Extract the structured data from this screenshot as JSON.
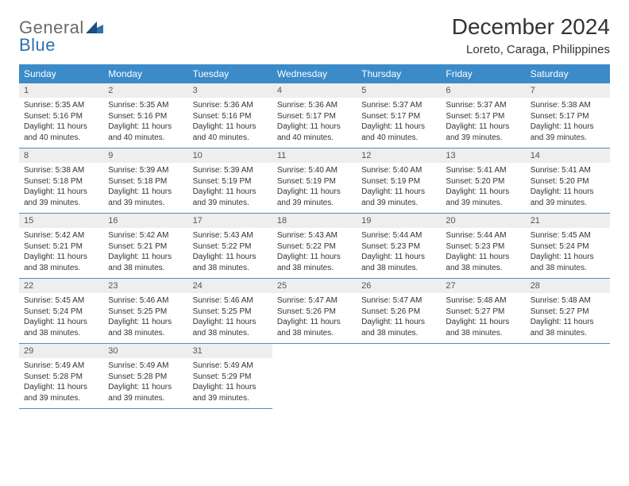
{
  "logo": {
    "word1": "General",
    "word2": "Blue"
  },
  "header": {
    "title": "December 2024",
    "subtitle": "Loreto, Caraga, Philippines"
  },
  "columns": [
    "Sunday",
    "Monday",
    "Tuesday",
    "Wednesday",
    "Thursday",
    "Friday",
    "Saturday"
  ],
  "colors": {
    "header_bg": "#3b8bc9",
    "header_fg": "#ffffff",
    "daynum_bg": "#eeeeee",
    "rule": "#5b8bb5",
    "logo_gray": "#6b6b6b",
    "logo_blue": "#2f6fab"
  },
  "weeks": [
    [
      {
        "n": "1",
        "sr": "Sunrise: 5:35 AM",
        "ss": "Sunset: 5:16 PM",
        "dl1": "Daylight: 11 hours",
        "dl2": "and 40 minutes."
      },
      {
        "n": "2",
        "sr": "Sunrise: 5:35 AM",
        "ss": "Sunset: 5:16 PM",
        "dl1": "Daylight: 11 hours",
        "dl2": "and 40 minutes."
      },
      {
        "n": "3",
        "sr": "Sunrise: 5:36 AM",
        "ss": "Sunset: 5:16 PM",
        "dl1": "Daylight: 11 hours",
        "dl2": "and 40 minutes."
      },
      {
        "n": "4",
        "sr": "Sunrise: 5:36 AM",
        "ss": "Sunset: 5:17 PM",
        "dl1": "Daylight: 11 hours",
        "dl2": "and 40 minutes."
      },
      {
        "n": "5",
        "sr": "Sunrise: 5:37 AM",
        "ss": "Sunset: 5:17 PM",
        "dl1": "Daylight: 11 hours",
        "dl2": "and 40 minutes."
      },
      {
        "n": "6",
        "sr": "Sunrise: 5:37 AM",
        "ss": "Sunset: 5:17 PM",
        "dl1": "Daylight: 11 hours",
        "dl2": "and 39 minutes."
      },
      {
        "n": "7",
        "sr": "Sunrise: 5:38 AM",
        "ss": "Sunset: 5:17 PM",
        "dl1": "Daylight: 11 hours",
        "dl2": "and 39 minutes."
      }
    ],
    [
      {
        "n": "8",
        "sr": "Sunrise: 5:38 AM",
        "ss": "Sunset: 5:18 PM",
        "dl1": "Daylight: 11 hours",
        "dl2": "and 39 minutes."
      },
      {
        "n": "9",
        "sr": "Sunrise: 5:39 AM",
        "ss": "Sunset: 5:18 PM",
        "dl1": "Daylight: 11 hours",
        "dl2": "and 39 minutes."
      },
      {
        "n": "10",
        "sr": "Sunrise: 5:39 AM",
        "ss": "Sunset: 5:19 PM",
        "dl1": "Daylight: 11 hours",
        "dl2": "and 39 minutes."
      },
      {
        "n": "11",
        "sr": "Sunrise: 5:40 AM",
        "ss": "Sunset: 5:19 PM",
        "dl1": "Daylight: 11 hours",
        "dl2": "and 39 minutes."
      },
      {
        "n": "12",
        "sr": "Sunrise: 5:40 AM",
        "ss": "Sunset: 5:19 PM",
        "dl1": "Daylight: 11 hours",
        "dl2": "and 39 minutes."
      },
      {
        "n": "13",
        "sr": "Sunrise: 5:41 AM",
        "ss": "Sunset: 5:20 PM",
        "dl1": "Daylight: 11 hours",
        "dl2": "and 39 minutes."
      },
      {
        "n": "14",
        "sr": "Sunrise: 5:41 AM",
        "ss": "Sunset: 5:20 PM",
        "dl1": "Daylight: 11 hours",
        "dl2": "and 39 minutes."
      }
    ],
    [
      {
        "n": "15",
        "sr": "Sunrise: 5:42 AM",
        "ss": "Sunset: 5:21 PM",
        "dl1": "Daylight: 11 hours",
        "dl2": "and 38 minutes."
      },
      {
        "n": "16",
        "sr": "Sunrise: 5:42 AM",
        "ss": "Sunset: 5:21 PM",
        "dl1": "Daylight: 11 hours",
        "dl2": "and 38 minutes."
      },
      {
        "n": "17",
        "sr": "Sunrise: 5:43 AM",
        "ss": "Sunset: 5:22 PM",
        "dl1": "Daylight: 11 hours",
        "dl2": "and 38 minutes."
      },
      {
        "n": "18",
        "sr": "Sunrise: 5:43 AM",
        "ss": "Sunset: 5:22 PM",
        "dl1": "Daylight: 11 hours",
        "dl2": "and 38 minutes."
      },
      {
        "n": "19",
        "sr": "Sunrise: 5:44 AM",
        "ss": "Sunset: 5:23 PM",
        "dl1": "Daylight: 11 hours",
        "dl2": "and 38 minutes."
      },
      {
        "n": "20",
        "sr": "Sunrise: 5:44 AM",
        "ss": "Sunset: 5:23 PM",
        "dl1": "Daylight: 11 hours",
        "dl2": "and 38 minutes."
      },
      {
        "n": "21",
        "sr": "Sunrise: 5:45 AM",
        "ss": "Sunset: 5:24 PM",
        "dl1": "Daylight: 11 hours",
        "dl2": "and 38 minutes."
      }
    ],
    [
      {
        "n": "22",
        "sr": "Sunrise: 5:45 AM",
        "ss": "Sunset: 5:24 PM",
        "dl1": "Daylight: 11 hours",
        "dl2": "and 38 minutes."
      },
      {
        "n": "23",
        "sr": "Sunrise: 5:46 AM",
        "ss": "Sunset: 5:25 PM",
        "dl1": "Daylight: 11 hours",
        "dl2": "and 38 minutes."
      },
      {
        "n": "24",
        "sr": "Sunrise: 5:46 AM",
        "ss": "Sunset: 5:25 PM",
        "dl1": "Daylight: 11 hours",
        "dl2": "and 38 minutes."
      },
      {
        "n": "25",
        "sr": "Sunrise: 5:47 AM",
        "ss": "Sunset: 5:26 PM",
        "dl1": "Daylight: 11 hours",
        "dl2": "and 38 minutes."
      },
      {
        "n": "26",
        "sr": "Sunrise: 5:47 AM",
        "ss": "Sunset: 5:26 PM",
        "dl1": "Daylight: 11 hours",
        "dl2": "and 38 minutes."
      },
      {
        "n": "27",
        "sr": "Sunrise: 5:48 AM",
        "ss": "Sunset: 5:27 PM",
        "dl1": "Daylight: 11 hours",
        "dl2": "and 38 minutes."
      },
      {
        "n": "28",
        "sr": "Sunrise: 5:48 AM",
        "ss": "Sunset: 5:27 PM",
        "dl1": "Daylight: 11 hours",
        "dl2": "and 38 minutes."
      }
    ],
    [
      {
        "n": "29",
        "sr": "Sunrise: 5:49 AM",
        "ss": "Sunset: 5:28 PM",
        "dl1": "Daylight: 11 hours",
        "dl2": "and 39 minutes."
      },
      {
        "n": "30",
        "sr": "Sunrise: 5:49 AM",
        "ss": "Sunset: 5:28 PM",
        "dl1": "Daylight: 11 hours",
        "dl2": "and 39 minutes."
      },
      {
        "n": "31",
        "sr": "Sunrise: 5:49 AM",
        "ss": "Sunset: 5:29 PM",
        "dl1": "Daylight: 11 hours",
        "dl2": "and 39 minutes."
      },
      null,
      null,
      null,
      null
    ]
  ]
}
